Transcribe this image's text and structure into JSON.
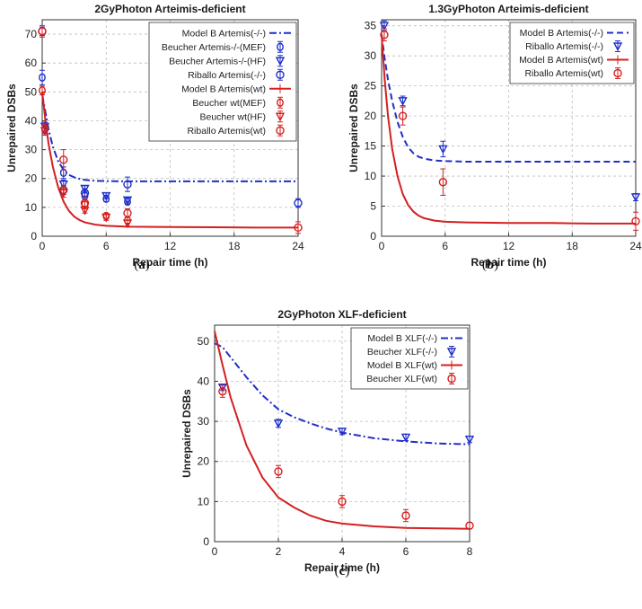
{
  "chart_data": [
    {
      "type": "scatter",
      "id": "a",
      "title": "2GyPhoton Arteimis-deficient",
      "xlabel": "Repair time (h)",
      "ylabel": "Unrepaired DSBs",
      "caption": {
        "open": "(",
        "letter": "a",
        "close": ")"
      },
      "xlim": [
        0,
        24
      ],
      "ylim": [
        0,
        75
      ],
      "xticks": [
        0,
        6,
        12,
        18,
        24
      ],
      "yticks": [
        0,
        10,
        20,
        30,
        40,
        50,
        60,
        70
      ],
      "legend_position": "top-right",
      "curves": [
        {
          "name": "Model B Artemis(-/-)",
          "color": "#1f2fc8",
          "dash": "dashdot",
          "x": [
            0,
            0.3,
            0.6,
            1,
            1.5,
            2,
            2.5,
            3,
            3.5,
            4,
            5,
            6,
            8,
            12,
            16,
            20,
            24
          ],
          "y": [
            49,
            43,
            37,
            31,
            26,
            23,
            21.3,
            20.4,
            19.9,
            19.5,
            19.2,
            19.1,
            19.0,
            19.0,
            19.0,
            19.0,
            19.0
          ]
        },
        {
          "name": "Model B Artemis(wt)",
          "color": "#d42020",
          "dash": "solid",
          "x": [
            0,
            0.3,
            0.6,
            1,
            1.5,
            2,
            2.5,
            3,
            3.5,
            4,
            5,
            6,
            8,
            12,
            16,
            20,
            24
          ],
          "y": [
            50,
            40,
            32,
            24,
            17,
            12,
            8.8,
            6.8,
            5.6,
            4.8,
            4.0,
            3.6,
            3.3,
            3.2,
            3.1,
            3.0,
            3.0
          ]
        }
      ],
      "series": [
        {
          "name": "Beucher Artemis-/-(MEF)",
          "color": "#1f2fc8",
          "marker": "circle-bar",
          "points": [
            {
              "x": 0,
              "y": 55,
              "err": 2.5
            },
            {
              "x": 0.25,
              "y": 37,
              "err": 1.5
            },
            {
              "x": 2,
              "y": 22,
              "err": 2
            },
            {
              "x": 4,
              "y": 14,
              "err": 1
            },
            {
              "x": 6,
              "y": 13,
              "err": 1
            },
            {
              "x": 8,
              "y": 12,
              "err": 1
            }
          ]
        },
        {
          "name": "Beucher Artemis-/-(HF)",
          "color": "#1f2fc8",
          "marker": "triangle-down",
          "points": [
            {
              "x": 0.25,
              "y": 38,
              "err": 1.5
            },
            {
              "x": 2,
              "y": 18,
              "err": 1.5
            },
            {
              "x": 4,
              "y": 16.5,
              "err": 1
            },
            {
              "x": 6,
              "y": 14,
              "err": 1
            },
            {
              "x": 8,
              "y": 12.5,
              "err": 1
            }
          ]
        },
        {
          "name": "Riballo Artemis(-/-)",
          "color": "#1f2fc8",
          "marker": "circle",
          "points": [
            {
              "x": 0,
              "y": 71,
              "err": 1.5
            },
            {
              "x": 2,
              "y": 16,
              "err": 1.5
            },
            {
              "x": 4,
              "y": 15,
              "err": 1.5
            },
            {
              "x": 8,
              "y": 18,
              "err": 2.5
            },
            {
              "x": 24,
              "y": 11.5,
              "err": 1.5
            }
          ]
        },
        {
          "name": "Beucher wt(MEF)",
          "color": "#d42020",
          "marker": "circle-bar",
          "points": [
            {
              "x": 0,
              "y": 50.5,
              "err": 1.5
            },
            {
              "x": 0.25,
              "y": 37.5,
              "err": 1.5
            },
            {
              "x": 2,
              "y": 16,
              "err": 1.5
            },
            {
              "x": 4,
              "y": 11,
              "err": 1
            },
            {
              "x": 6,
              "y": 7,
              "err": 1
            },
            {
              "x": 8,
              "y": 5.5,
              "err": 1
            }
          ]
        },
        {
          "name": "Beucher wt(HF)",
          "color": "#d42020",
          "marker": "triangle-down",
          "points": [
            {
              "x": 0.25,
              "y": 36.5,
              "err": 1.5
            },
            {
              "x": 2,
              "y": 15,
              "err": 1.5
            },
            {
              "x": 4,
              "y": 9,
              "err": 1
            },
            {
              "x": 6,
              "y": 6.5,
              "err": 1
            },
            {
              "x": 8,
              "y": 4.5,
              "err": 1
            }
          ]
        },
        {
          "name": "Riballo Artemis(wt)",
          "color": "#d42020",
          "marker": "circle",
          "points": [
            {
              "x": 0,
              "y": 71,
              "err": 2
            },
            {
              "x": 2,
              "y": 26.5,
              "err": 3.5
            },
            {
              "x": 4,
              "y": 11.5,
              "err": 2
            },
            {
              "x": 8,
              "y": 8,
              "err": 1.5
            },
            {
              "x": 24,
              "y": 3,
              "err": 2
            }
          ]
        }
      ]
    },
    {
      "type": "scatter",
      "id": "b",
      "title": "1.3GyPhoton Arteimis-deficient",
      "xlabel": "Repair time (h)",
      "ylabel": "Unrepaired DSBs",
      "caption": {
        "open": "(",
        "letter": "b",
        "close": ")"
      },
      "xlim": [
        0,
        24
      ],
      "ylim": [
        0,
        36
      ],
      "xticks": [
        0,
        6,
        12,
        18,
        24
      ],
      "yticks": [
        0,
        5,
        10,
        15,
        20,
        25,
        30,
        35
      ],
      "legend_position": "top-right",
      "curves": [
        {
          "name": "Model B Artemis(-/-)",
          "color": "#1f2fc8",
          "dash": "dash",
          "x": [
            0,
            0.3,
            0.6,
            1,
            1.5,
            2,
            2.5,
            3,
            3.5,
            4,
            5,
            6,
            8,
            12,
            16,
            20,
            24
          ],
          "y": [
            33.5,
            29.5,
            26,
            22.5,
            19,
            16.5,
            14.8,
            13.8,
            13.2,
            12.9,
            12.6,
            12.5,
            12.4,
            12.4,
            12.4,
            12.4,
            12.4
          ]
        },
        {
          "name": "Model B Artemis(wt)",
          "color": "#d42020",
          "dash": "solid",
          "x": [
            0,
            0.3,
            0.6,
            1,
            1.5,
            2,
            2.5,
            3,
            3.5,
            4,
            5,
            6,
            8,
            12,
            16,
            20,
            24
          ],
          "y": [
            33.5,
            26,
            20,
            14.5,
            10,
            7,
            5.2,
            4.1,
            3.4,
            3.0,
            2.6,
            2.4,
            2.3,
            2.2,
            2.2,
            2.1,
            2.1
          ]
        }
      ],
      "series": [
        {
          "name": "Riballo Artemis(-/-)",
          "color": "#1f2fc8",
          "marker": "triangle-down",
          "points": [
            {
              "x": 0.25,
              "y": 35,
              "err": 0.8
            },
            {
              "x": 2,
              "y": 22.5,
              "err": 0.8
            },
            {
              "x": 5.8,
              "y": 14.5,
              "err": 1.3
            },
            {
              "x": 24,
              "y": 6.5,
              "err": 0.6
            }
          ]
        },
        {
          "name": "Riballo Artemis(wt)",
          "color": "#d42020",
          "marker": "circle",
          "points": [
            {
              "x": 0.25,
              "y": 33.5,
              "err": 1.0
            },
            {
              "x": 2,
              "y": 20,
              "err": 1.5
            },
            {
              "x": 5.8,
              "y": 9,
              "err": 2.2
            },
            {
              "x": 24,
              "y": 2.5,
              "err": 1.5
            }
          ]
        }
      ]
    },
    {
      "type": "scatter",
      "id": "c",
      "title": "2GyPhoton XLF-deficient",
      "xlabel": "Repair time (h)",
      "ylabel": "Unrepaired DSBs",
      "caption": {
        "open": "(",
        "letter": "c",
        "close": ")"
      },
      "xlim": [
        0,
        8
      ],
      "ylim": [
        0,
        54
      ],
      "xticks": [
        0,
        2,
        4,
        6,
        8
      ],
      "yticks": [
        0,
        10,
        20,
        30,
        40,
        50
      ],
      "legend_position": "top-right",
      "curves": [
        {
          "name": "Model B XLF(-/-)",
          "color": "#1f2fc8",
          "dash": "dashdot",
          "x": [
            0,
            0.25,
            0.5,
            1,
            1.5,
            2,
            2.5,
            3,
            3.5,
            4,
            5,
            6,
            7,
            8
          ],
          "y": [
            49.5,
            48.5,
            46,
            41,
            36.5,
            33,
            31,
            29.5,
            28.2,
            27.2,
            25.8,
            25,
            24.5,
            24.3
          ]
        },
        {
          "name": "Model B XLF(wt)",
          "color": "#d42020",
          "dash": "solid",
          "x": [
            0,
            0.25,
            0.5,
            1,
            1.5,
            2,
            2.5,
            3,
            3.5,
            4,
            5,
            6,
            7,
            8
          ],
          "y": [
            52.5,
            44,
            36,
            24,
            16,
            11,
            8.5,
            6.5,
            5.2,
            4.5,
            3.8,
            3.4,
            3.3,
            3.2
          ]
        }
      ],
      "series": [
        {
          "name": "Beucher XLF(-/-)",
          "color": "#1f2fc8",
          "marker": "triangle-down",
          "points": [
            {
              "x": 0.25,
              "y": 38.5,
              "err": 0.8
            },
            {
              "x": 2,
              "y": 29.5,
              "err": 1
            },
            {
              "x": 4,
              "y": 27.5,
              "err": 0.8
            },
            {
              "x": 6,
              "y": 26,
              "err": 0.8
            },
            {
              "x": 8,
              "y": 25.5,
              "err": 0.8
            }
          ]
        },
        {
          "name": "Beucher XLF(wt)",
          "color": "#d42020",
          "marker": "circle",
          "points": [
            {
              "x": 0.25,
              "y": 37.5,
              "err": 1.5
            },
            {
              "x": 2,
              "y": 17.5,
              "err": 1.5
            },
            {
              "x": 4,
              "y": 10,
              "err": 1.5
            },
            {
              "x": 6,
              "y": 6.5,
              "err": 1.5
            },
            {
              "x": 8,
              "y": 4,
              "err": 0.8
            }
          ]
        }
      ]
    }
  ]
}
